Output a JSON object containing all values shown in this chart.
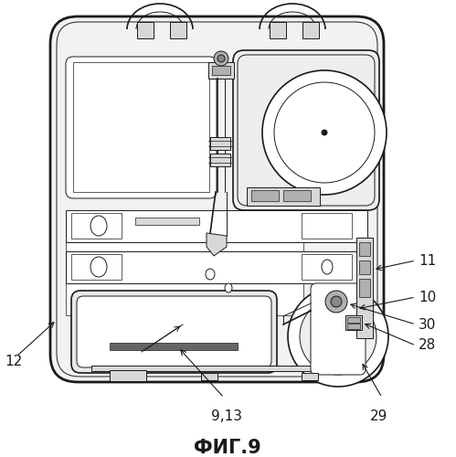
{
  "title": "ФИГ.9",
  "title_fontsize": 15,
  "title_bold": true,
  "background_color": "#ffffff",
  "line_color": "#1a1a1a",
  "gray_light": "#d8d8d8",
  "gray_mid": "#b0b0b0",
  "gray_dark": "#888888",
  "img_gray": "#e8e8e8"
}
